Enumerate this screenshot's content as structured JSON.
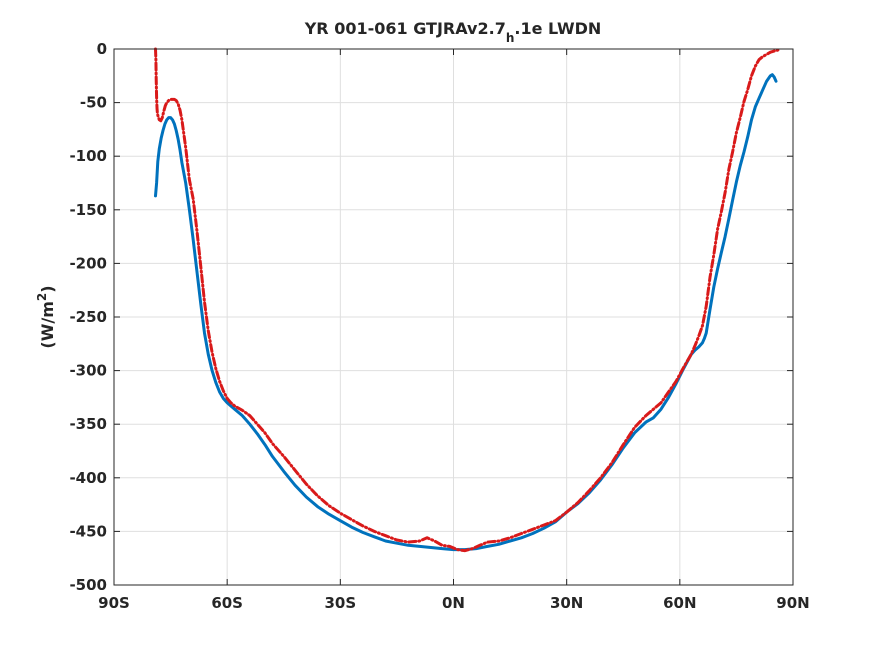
{
  "chart_data": {
    "type": "line",
    "title": {
      "prefix": "YR 001-061 GTJRAv2.7",
      "subscript": "h",
      "suffix": ".1e LWDN"
    },
    "xlabel": "",
    "ylabel": {
      "text": "(W/m",
      "superscript": "2",
      "close": ")"
    },
    "xlim": [
      -90,
      90
    ],
    "ylim": [
      -500,
      0
    ],
    "xticks": [
      -90,
      -60,
      -30,
      0,
      30,
      60,
      90
    ],
    "xtick_labels": [
      "90S",
      "60S",
      "30S",
      "0N",
      "30N",
      "60N",
      "90N"
    ],
    "yticks": [
      0,
      -50,
      -100,
      -150,
      -200,
      -250,
      -300,
      -350,
      -400,
      -450,
      -500
    ],
    "ytick_labels": [
      "0",
      "-50",
      "-100",
      "-150",
      "-200",
      "-250",
      "-300",
      "-350",
      "-400",
      "-450",
      "-500"
    ],
    "grid": true,
    "legend": "none",
    "series": [
      {
        "color": "#0072BD",
        "style": "solid",
        "x": [
          -79,
          -78.7,
          -78.4,
          -78,
          -77.5,
          -77,
          -76.5,
          -76,
          -75.5,
          -75,
          -74.5,
          -74,
          -73.5,
          -73,
          -72.5,
          -72,
          -71,
          -70,
          -69,
          -68,
          -67,
          -66,
          -65,
          -64,
          -63,
          -62,
          -61,
          -60,
          -59,
          -58,
          -56,
          -54,
          -52,
          -50,
          -48,
          -45,
          -42,
          -39,
          -36,
          -33,
          -30,
          -27,
          -24,
          -21,
          -18,
          -15,
          -12,
          -9,
          -6,
          -3,
          0,
          3,
          6,
          9,
          12,
          15,
          18,
          21,
          24,
          27,
          30,
          33,
          36,
          39,
          42,
          45,
          48,
          51,
          53,
          55,
          57,
          59,
          61,
          63,
          64,
          65,
          66,
          66.5,
          67,
          67.5,
          68,
          69,
          70,
          71,
          72,
          73,
          74,
          75,
          76,
          77,
          78,
          79,
          80,
          81,
          82,
          83,
          84,
          84.5,
          85,
          85.5
        ],
        "y": [
          -137,
          -125,
          -105,
          -93,
          -83,
          -76,
          -70,
          -66,
          -64,
          -64,
          -66,
          -70,
          -76,
          -84,
          -94,
          -106,
          -125,
          -150,
          -178,
          -208,
          -238,
          -265,
          -285,
          -300,
          -311,
          -320,
          -326,
          -330,
          -333,
          -336,
          -342,
          -350,
          -359,
          -369,
          -380,
          -394,
          -407,
          -418,
          -427,
          -434,
          -440,
          -446,
          -451,
          -455,
          -459,
          -461,
          -463,
          -464,
          -465,
          -466,
          -467,
          -467,
          -466,
          -464,
          -462,
          -459,
          -456,
          -452,
          -447,
          -441,
          -432,
          -424,
          -414,
          -402,
          -388,
          -372,
          -358,
          -348,
          -344,
          -336,
          -325,
          -312,
          -298,
          -285,
          -281,
          -278,
          -274,
          -270,
          -265,
          -254,
          -243,
          -222,
          -205,
          -190,
          -175,
          -158,
          -141,
          -124,
          -109,
          -96,
          -82,
          -66,
          -54,
          -46,
          -38,
          -30,
          -25,
          -24,
          -26,
          -30
        ]
      },
      {
        "color": "#D91A1A",
        "style": "dashdot",
        "x": [
          -79,
          -78.9,
          -78.8,
          -78.7,
          -78.6,
          -78.5,
          -78.3,
          -78,
          -77.6,
          -77.2,
          -76.8,
          -76.4,
          -76,
          -75.5,
          -75,
          -74.5,
          -74,
          -73.5,
          -73,
          -72.5,
          -72,
          -71,
          -70,
          -69,
          -68,
          -67,
          -66,
          -65,
          -64,
          -63,
          -62,
          -61,
          -60,
          -59,
          -58,
          -56,
          -54,
          -52,
          -50,
          -48,
          -45,
          -42,
          -39,
          -36,
          -33,
          -30,
          -27,
          -24,
          -21,
          -18,
          -15,
          -12,
          -9,
          -7,
          -5,
          -3,
          -1,
          1,
          3,
          5,
          7,
          9,
          12,
          15,
          18,
          21,
          24,
          27,
          30,
          33,
          36,
          39,
          42,
          45,
          48,
          51,
          53,
          55,
          57,
          59,
          61,
          63,
          64,
          65,
          66,
          67,
          68,
          69,
          70,
          71,
          72,
          73,
          74,
          75,
          76,
          77,
          78,
          79,
          80,
          81,
          82,
          83,
          84,
          85,
          86
        ],
        "y": [
          0,
          -10,
          -28,
          -45,
          -55,
          -60,
          -63,
          -66,
          -67,
          -64,
          -58,
          -53,
          -50,
          -48,
          -47,
          -47,
          -47,
          -48,
          -51,
          -57,
          -66,
          -92,
          -122,
          -140,
          -170,
          -203,
          -236,
          -263,
          -283,
          -298,
          -310,
          -319,
          -326,
          -330,
          -333,
          -337,
          -342,
          -350,
          -358,
          -368,
          -380,
          -393,
          -406,
          -417,
          -426,
          -433,
          -439,
          -445,
          -450,
          -454,
          -458,
          -460,
          -459,
          -456,
          -459,
          -463,
          -464,
          -467,
          -468,
          -466,
          -463,
          -460,
          -459,
          -456,
          -452,
          -448,
          -444,
          -440,
          -432,
          -423,
          -412,
          -400,
          -386,
          -369,
          -353,
          -342,
          -336,
          -330,
          -320,
          -310,
          -297,
          -285,
          -277,
          -268,
          -258,
          -240,
          -213,
          -192,
          -168,
          -152,
          -134,
          -112,
          -96,
          -78,
          -64,
          -49,
          -38,
          -25,
          -16,
          -10,
          -7,
          -5,
          -3,
          -2,
          -1
        ]
      }
    ]
  }
}
